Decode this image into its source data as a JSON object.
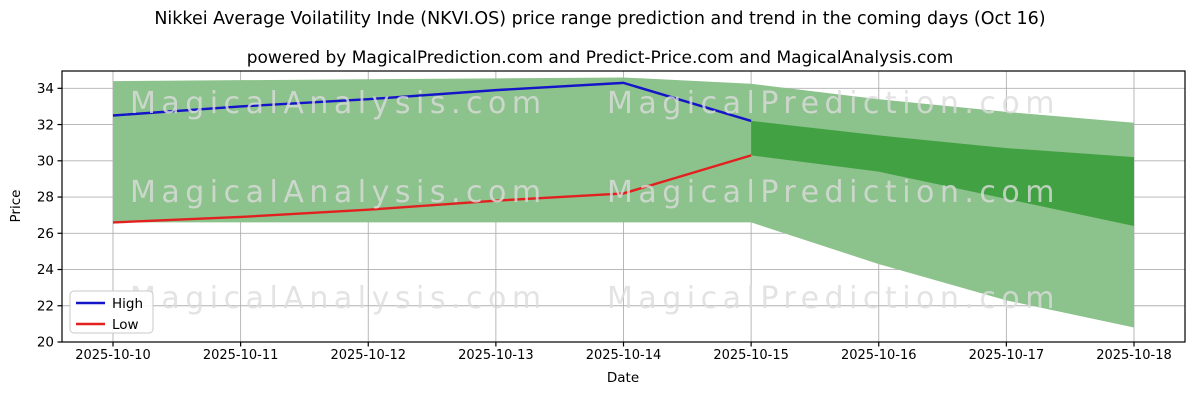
{
  "chart_data": {
    "type": "line",
    "title": "Nikkei Average Voilatility Inde (NKVI.OS) price range prediction and trend in the coming days (Oct 16)",
    "subtitle": "powered by MagicalPrediction.com and Predict-Price.com and MagicalAnalysis.com",
    "xlabel": "Date",
    "ylabel": "Price",
    "x_categories": [
      "2025-10-10",
      "2025-10-11",
      "2025-10-12",
      "2025-10-13",
      "2025-10-14",
      "2025-10-15",
      "2025-10-16",
      "2025-10-17",
      "2025-10-18"
    ],
    "yticks": [
      20,
      22,
      24,
      26,
      28,
      30,
      32,
      34
    ],
    "ylim": [
      20,
      34.95
    ],
    "grid": true,
    "grid_color": "#b0b0b0",
    "series": [
      {
        "name": "High",
        "color": "#1414c8",
        "x": [
          "2025-10-10",
          "2025-10-11",
          "2025-10-12",
          "2025-10-13",
          "2025-10-14",
          "2025-10-15"
        ],
        "values": [
          32.5,
          33.0,
          33.4,
          33.9,
          34.3,
          32.2
        ]
      },
      {
        "name": "Low",
        "color": "#e32020",
        "x": [
          "2025-10-10",
          "2025-10-11",
          "2025-10-12",
          "2025-10-13",
          "2025-10-14",
          "2025-10-15"
        ],
        "values": [
          26.6,
          26.9,
          27.3,
          27.8,
          28.2,
          30.3
        ]
      }
    ],
    "bands": [
      {
        "name": "prediction-range-outer",
        "color": "#8cc28c",
        "x": [
          "2025-10-10",
          "2025-10-11",
          "2025-10-12",
          "2025-10-13",
          "2025-10-14",
          "2025-10-15",
          "2025-10-16",
          "2025-10-17",
          "2025-10-18"
        ],
        "upper": [
          34.4,
          34.45,
          34.5,
          34.55,
          34.6,
          34.25,
          33.4,
          32.7,
          32.1
        ],
        "lower": [
          26.6,
          26.6,
          26.6,
          26.6,
          26.6,
          26.6,
          24.3,
          22.3,
          20.8
        ]
      },
      {
        "name": "prediction-range-inner",
        "color": "#42a142",
        "x": [
          "2025-10-15",
          "2025-10-16",
          "2025-10-17",
          "2025-10-18"
        ],
        "upper": [
          32.2,
          31.4,
          30.7,
          30.2
        ],
        "lower": [
          30.3,
          29.4,
          27.9,
          26.4
        ]
      }
    ],
    "legend": {
      "position": "lower-left",
      "entries": [
        {
          "label": "High",
          "color": "#1414c8"
        },
        {
          "label": "Low",
          "color": "#e32020"
        }
      ]
    },
    "watermark": {
      "text_left": "MagicalAnalysis.com",
      "text_right": "MagicalPrediction.com",
      "color": "#dcdcdc"
    }
  }
}
